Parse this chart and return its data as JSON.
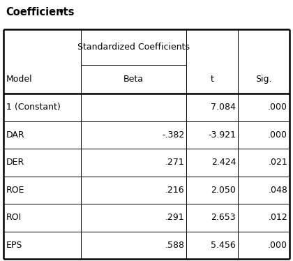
{
  "title": "Coefficients",
  "title_superscript": "a",
  "col_header_top": "Standardized Coefficients",
  "col_headers": [
    "Model",
    "Beta",
    "t",
    "Sig."
  ],
  "rows": [
    [
      "1 (Constant)",
      "",
      "7.084",
      ".000"
    ],
    [
      "DAR",
      "-.382",
      "-3.921",
      ".000"
    ],
    [
      "DER",
      ".271",
      "2.424",
      ".021"
    ],
    [
      "ROE",
      ".216",
      "2.050",
      ".048"
    ],
    [
      "ROI",
      ".291",
      "2.653",
      ".012"
    ],
    [
      "EPS",
      ".588",
      "5.456",
      ".000"
    ]
  ],
  "bg_color": "#ffffff",
  "text_color": "#000000",
  "border_color": "#000000",
  "title_fontsize": 10.5,
  "header_fontsize": 9,
  "cell_fontsize": 9,
  "fig_width": 4.2,
  "fig_height": 3.74,
  "dpi": 100
}
